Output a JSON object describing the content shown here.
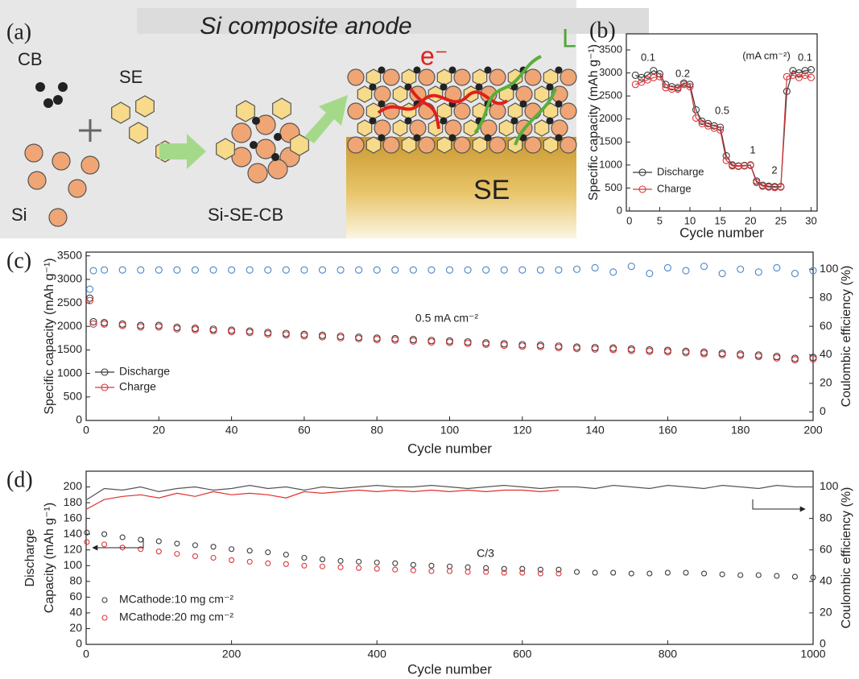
{
  "diagram": {
    "label": "(a)",
    "title": "Si composite anode",
    "cb": "CB",
    "se_small": "SE",
    "si": "Si",
    "composite": "Si-SE-CB",
    "se_layer": "SE",
    "electron": "e⁻",
    "ion": "L"
  },
  "chart_data": [
    {
      "type": "line",
      "panel_label": "(b)",
      "xlabel": "Cycle number",
      "ylabel": "Specific capacity (mAh g⁻¹)",
      "xlim": [
        -0.5,
        31
      ],
      "xticks": [
        0,
        5,
        10,
        15,
        20,
        25,
        30
      ],
      "ylim": [
        0,
        3850
      ],
      "yticks": [
        0,
        500,
        1000,
        1500,
        2000,
        2500,
        3000,
        3500
      ],
      "legend": "lower left",
      "x": [
        1,
        2,
        3,
        4,
        5,
        6,
        7,
        8,
        9,
        10,
        11,
        12,
        13,
        14,
        15,
        16,
        17,
        18,
        19,
        20,
        21,
        22,
        23,
        24,
        25,
        26,
        27,
        28,
        29,
        30
      ],
      "series": [
        {
          "name": "Discharge",
          "color": "#3a3a3a",
          "line": true,
          "marker": true,
          "values": [
            2950,
            2900,
            2950,
            3050,
            2980,
            2750,
            2700,
            2680,
            2780,
            2750,
            2200,
            1950,
            1900,
            1850,
            1820,
            1200,
            1000,
            980,
            990,
            1000,
            650,
            560,
            540,
            530,
            530,
            2600,
            3050,
            3000,
            3050,
            3070
          ]
        },
        {
          "name": "Charge",
          "color": "#d9373a",
          "line": true,
          "marker": true,
          "values": [
            2750,
            2800,
            2850,
            2900,
            2920,
            2680,
            2650,
            2650,
            2750,
            2700,
            2020,
            1900,
            1850,
            1800,
            1760,
            1100,
            980,
            970,
            980,
            990,
            620,
            540,
            520,
            510,
            520,
            2920,
            2950,
            2900,
            2950,
            2900
          ]
        }
      ],
      "annotations": [
        "0.1",
        "0.2",
        "0.5",
        "1",
        "2",
        "0.1",
        "(mA cm⁻²)"
      ]
    },
    {
      "type": "line",
      "panel_label": "(c)",
      "xlabel": "Cycle number",
      "ylabel": "Specific capacity (mAh g⁻¹)",
      "y2label": "Coulombic efficiency (%)",
      "xlim": [
        0,
        200
      ],
      "xticks": [
        0,
        20,
        40,
        60,
        80,
        100,
        120,
        140,
        160,
        180,
        200
      ],
      "ylim": [
        0,
        3580
      ],
      "yticks": [
        0,
        500,
        1000,
        1500,
        2000,
        2500,
        3000,
        3500
      ],
      "y2lim": [
        -6,
        112
      ],
      "y2ticks": [
        0,
        20,
        40,
        60,
        80,
        100
      ],
      "legend": "center left",
      "x": [
        1,
        2,
        5,
        10,
        15,
        20,
        25,
        30,
        35,
        40,
        45,
        50,
        55,
        60,
        65,
        70,
        75,
        80,
        85,
        90,
        95,
        100,
        105,
        110,
        115,
        120,
        125,
        130,
        135,
        140,
        145,
        150,
        155,
        160,
        165,
        170,
        175,
        180,
        185,
        190,
        195,
        200
      ],
      "series": [
        {
          "name": "Discharge",
          "color": "#3a3a3a",
          "line": false,
          "marker": true,
          "values": [
            2600,
            2100,
            2080,
            2050,
            2020,
            2020,
            1980,
            1960,
            1940,
            1920,
            1900,
            1870,
            1850,
            1830,
            1810,
            1790,
            1770,
            1750,
            1740,
            1720,
            1700,
            1690,
            1670,
            1650,
            1630,
            1610,
            1600,
            1580,
            1560,
            1550,
            1540,
            1520,
            1500,
            1490,
            1470,
            1450,
            1430,
            1410,
            1390,
            1360,
            1320,
            1340
          ]
        },
        {
          "name": "Charge",
          "color": "#d9373a",
          "line": false,
          "marker": true,
          "values": [
            2550,
            2050,
            2050,
            2020,
            1990,
            1990,
            1950,
            1930,
            1910,
            1890,
            1870,
            1840,
            1820,
            1800,
            1780,
            1760,
            1740,
            1720,
            1710,
            1690,
            1670,
            1660,
            1640,
            1620,
            1600,
            1580,
            1570,
            1550,
            1530,
            1520,
            1510,
            1490,
            1470,
            1460,
            1440,
            1420,
            1400,
            1380,
            1360,
            1330,
            1290,
            1310
          ]
        },
        {
          "color": "#4a86c8",
          "axis": "y2",
          "line": false,
          "marker": true,
          "values": [
            86,
            99,
            99.5,
            99.5,
            99.5,
            99.5,
            99.5,
            99.5,
            99.5,
            99.5,
            99.5,
            99.5,
            99.5,
            99.5,
            99.5,
            99.5,
            99.5,
            99.5,
            99.5,
            99.5,
            99.5,
            99.5,
            99.5,
            99.5,
            99.5,
            99.5,
            99.5,
            99.5,
            100,
            101,
            98,
            102,
            97,
            101,
            99,
            102,
            97,
            100,
            98,
            101,
            97,
            99
          ]
        }
      ],
      "annotations": [
        "0.5 mA cm⁻²"
      ]
    },
    {
      "type": "line",
      "panel_label": "(d)",
      "xlabel": "Cycle number",
      "ylabel": [
        "Discharge",
        "Capacity (mAh g⁻¹)"
      ],
      "y2label": "Coulombic efficiency (%)",
      "xlim": [
        0,
        1000
      ],
      "xticks": [
        0,
        200,
        400,
        600,
        800,
        1000
      ],
      "ylim": [
        0,
        220
      ],
      "yticks": [
        0,
        20,
        40,
        60,
        80,
        100,
        120,
        140,
        160,
        180,
        200
      ],
      "y2lim": [
        0,
        110
      ],
      "y2ticks": [
        0,
        20,
        40,
        60,
        80,
        100
      ],
      "legend": "lower left",
      "x": [
        1,
        25,
        50,
        75,
        100,
        125,
        150,
        175,
        200,
        225,
        250,
        275,
        300,
        325,
        350,
        375,
        400,
        425,
        450,
        475,
        500,
        525,
        550,
        575,
        600,
        625,
        650,
        675,
        700,
        725,
        750,
        775,
        800,
        825,
        850,
        875,
        900,
        925,
        950,
        975,
        1000
      ],
      "series": [
        {
          "name": "MCathode:10 mg cm⁻²",
          "color": "#3a3a3a",
          "line": false,
          "marker": true,
          "values": [
            142,
            140,
            136,
            133,
            131,
            128,
            126,
            124,
            121,
            119,
            117,
            114,
            110,
            108,
            106,
            105,
            104,
            103,
            101,
            100,
            99,
            98,
            97,
            96,
            96,
            95,
            95,
            92,
            91,
            91,
            90,
            90,
            91,
            91,
            90,
            89,
            88,
            88,
            87,
            86,
            85
          ]
        },
        {
          "name": "MCathode:20 mg cm⁻²",
          "color": "#d9373a",
          "line": false,
          "marker": true,
          "values": [
            130,
            127,
            123,
            121,
            118,
            115,
            112,
            110,
            107,
            105,
            103,
            102,
            100,
            99,
            98,
            97,
            96,
            95,
            94,
            93,
            93,
            92,
            92,
            91,
            91,
            90,
            90,
            null,
            null,
            null,
            null,
            null,
            null,
            null,
            null,
            null,
            null,
            null,
            null,
            null,
            null
          ]
        },
        {
          "color": "#555555",
          "axis": "y2",
          "line": true,
          "marker": false,
          "values": [
            92,
            99,
            98,
            100,
            97,
            99,
            100,
            98,
            99,
            101,
            99,
            100,
            98,
            100,
            99,
            100,
            101,
            100,
            100,
            101,
            100,
            99,
            100,
            101,
            100,
            99,
            100,
            100,
            99,
            101,
            100,
            99,
            101,
            100,
            99,
            101,
            100,
            99,
            101,
            100,
            100
          ]
        },
        {
          "color": "#e0302a",
          "axis": "y2",
          "line": true,
          "marker": false,
          "values": [
            86,
            92,
            94,
            95,
            93,
            96,
            94,
            97,
            95,
            96,
            95,
            93,
            97,
            96,
            97,
            98,
            97,
            98,
            97,
            98,
            97,
            98,
            97,
            98,
            98,
            97,
            98,
            null,
            null,
            null,
            null,
            null,
            null,
            null,
            null,
            null,
            null,
            null,
            null,
            null,
            null
          ]
        }
      ],
      "annotations": [
        "C/3"
      ]
    }
  ]
}
